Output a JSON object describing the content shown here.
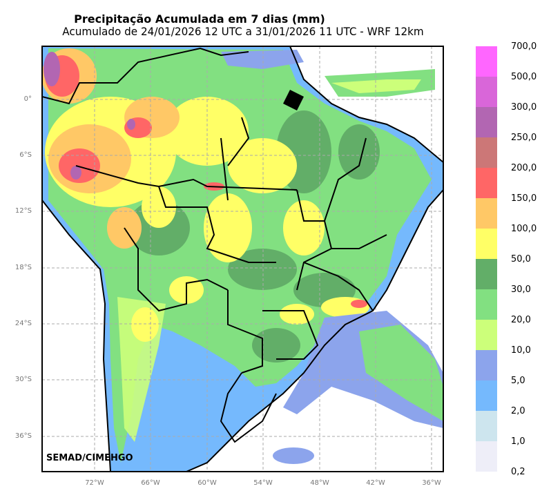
{
  "header": {
    "title": "Precipitação Acumulada em 7 dias (mm)",
    "subtitle": "Acumulado de 24/01/2026 12 UTC a 31/01/2026 11 UTC - WRF 12km"
  },
  "map": {
    "credit": "SEMAD/CIMEHGO",
    "lat_labels": [
      "0°",
      "6°S",
      "12°S",
      "18°S",
      "24°S",
      "30°S",
      "36°S"
    ],
    "lon_labels": [
      "72°W",
      "66°W",
      "60°W",
      "54°W",
      "48°W",
      "42°W",
      "36°W"
    ]
  },
  "legend": {
    "labels": [
      "700,0",
      "500,0",
      "300,0",
      "250,0",
      "200,0",
      "150,0",
      "100,0",
      "50,0",
      "30,0",
      "20,0",
      "10,0",
      "5,0",
      "2,0",
      "1,0",
      "0,2"
    ],
    "colors": [
      "#ff66ff",
      "#d966d9",
      "#b266b2",
      "#cc7777",
      "#ff6666",
      "#ffc866",
      "#ffff66",
      "#62ae68",
      "#82e081",
      "#ccff7a",
      "#8ca4ec",
      "#75b9fd",
      "#cde5ee",
      "#eeeef8"
    ]
  }
}
